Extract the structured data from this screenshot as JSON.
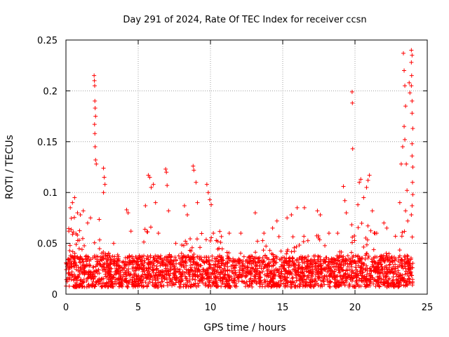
{
  "chart_data": {
    "type": "scatter",
    "title": "Day 291 of 2024, Rate Of TEC Index for receiver ccsn",
    "xlabel": "GPS time / hours",
    "ylabel": "ROTI / TECUs",
    "xlim": [
      0,
      25
    ],
    "ylim": [
      0,
      0.25
    ],
    "x_ticks": [
      0,
      5,
      10,
      15,
      20,
      25
    ],
    "x_tick_labels": [
      "0",
      "5",
      "10",
      "15",
      "20",
      "25"
    ],
    "y_ticks": [
      0,
      0.05,
      0.1,
      0.15,
      0.2,
      0.25
    ],
    "y_tick_labels": [
      "0",
      "0.05",
      "0.1",
      "0.15",
      "0.2",
      "0.25"
    ],
    "grid": true,
    "marker": "+",
    "color": "#ff0000",
    "series": [
      {
        "name": "ROTI",
        "points": [
          [
            0.2,
            0.062
          ],
          [
            0.3,
            0.085
          ],
          [
            0.45,
            0.09
          ],
          [
            0.6,
            0.095
          ],
          [
            0.8,
            0.08
          ],
          [
            1.0,
            0.078
          ],
          [
            1.2,
            0.082
          ],
          [
            1.5,
            0.07
          ],
          [
            1.7,
            0.075
          ],
          [
            1.95,
            0.215
          ],
          [
            1.97,
            0.21
          ],
          [
            1.99,
            0.205
          ],
          [
            2.0,
            0.19
          ],
          [
            2.02,
            0.183
          ],
          [
            2.05,
            0.175
          ],
          [
            1.98,
            0.167
          ],
          [
            2.0,
            0.158
          ],
          [
            2.02,
            0.145
          ],
          [
            2.05,
            0.132
          ],
          [
            2.1,
            0.128
          ],
          [
            2.6,
            0.124
          ],
          [
            2.65,
            0.115
          ],
          [
            2.7,
            0.108
          ],
          [
            2.6,
            0.1
          ],
          [
            3.3,
            0.05
          ],
          [
            4.2,
            0.083
          ],
          [
            4.3,
            0.08
          ],
          [
            4.5,
            0.062
          ],
          [
            5.5,
            0.087
          ],
          [
            5.7,
            0.117
          ],
          [
            5.8,
            0.115
          ],
          [
            5.9,
            0.105
          ],
          [
            6.05,
            0.108
          ],
          [
            6.2,
            0.09
          ],
          [
            6.4,
            0.06
          ],
          [
            6.9,
            0.123
          ],
          [
            6.95,
            0.12
          ],
          [
            7.0,
            0.107
          ],
          [
            7.1,
            0.082
          ],
          [
            7.6,
            0.05
          ],
          [
            8.2,
            0.087
          ],
          [
            8.4,
            0.078
          ],
          [
            8.8,
            0.126
          ],
          [
            8.85,
            0.122
          ],
          [
            9.0,
            0.11
          ],
          [
            9.1,
            0.09
          ],
          [
            9.75,
            0.108
          ],
          [
            9.85,
            0.1
          ],
          [
            9.95,
            0.093
          ],
          [
            10.05,
            0.088
          ],
          [
            10.2,
            0.06
          ],
          [
            10.5,
            0.052
          ],
          [
            11.3,
            0.06
          ],
          [
            12.1,
            0.06
          ],
          [
            13.1,
            0.08
          ],
          [
            13.7,
            0.06
          ],
          [
            14.3,
            0.065
          ],
          [
            14.6,
            0.072
          ],
          [
            15.3,
            0.075
          ],
          [
            15.6,
            0.078
          ],
          [
            16.0,
            0.085
          ],
          [
            16.5,
            0.085
          ],
          [
            17.4,
            0.082
          ],
          [
            17.6,
            0.078
          ],
          [
            18.2,
            0.06
          ],
          [
            18.8,
            0.06
          ],
          [
            19.2,
            0.106
          ],
          [
            19.3,
            0.092
          ],
          [
            19.4,
            0.08
          ],
          [
            19.8,
            0.199
          ],
          [
            19.82,
            0.188
          ],
          [
            19.84,
            0.143
          ],
          [
            20.2,
            0.088
          ],
          [
            20.3,
            0.11
          ],
          [
            20.4,
            0.113
          ],
          [
            20.6,
            0.095
          ],
          [
            20.8,
            0.105
          ],
          [
            20.9,
            0.112
          ],
          [
            21.0,
            0.117
          ],
          [
            21.2,
            0.082
          ],
          [
            21.5,
            0.06
          ],
          [
            22.0,
            0.07
          ],
          [
            22.2,
            0.065
          ],
          [
            22.8,
            0.057
          ],
          [
            23.1,
            0.09
          ],
          [
            23.2,
            0.128
          ],
          [
            23.3,
            0.145
          ],
          [
            23.35,
            0.237
          ],
          [
            23.4,
            0.22
          ],
          [
            23.45,
            0.205
          ],
          [
            23.5,
            0.185
          ],
          [
            23.4,
            0.165
          ],
          [
            23.45,
            0.152
          ],
          [
            23.55,
            0.128
          ],
          [
            23.6,
            0.102
          ],
          [
            23.5,
            0.082
          ],
          [
            23.65,
            0.072
          ],
          [
            23.75,
            0.208
          ],
          [
            23.8,
            0.198
          ],
          [
            23.9,
            0.24
          ],
          [
            23.95,
            0.235
          ],
          [
            23.9,
            0.228
          ],
          [
            23.92,
            0.215
          ],
          [
            23.9,
            0.205
          ],
          [
            23.95,
            0.19
          ],
          [
            23.95,
            0.178
          ],
          [
            24.0,
            0.163
          ],
          [
            23.95,
            0.148
          ],
          [
            23.95,
            0.136
          ],
          [
            24.0,
            0.125
          ],
          [
            23.98,
            0.11
          ],
          [
            24.0,
            0.098
          ],
          [
            23.95,
            0.087
          ],
          [
            23.9,
            0.078
          ]
        ],
        "dense_band": {
          "x_range": [
            0.0,
            24.0
          ],
          "baseline_low": 0.007,
          "baseline_high": 0.038,
          "description_free": true
        }
      }
    ]
  }
}
